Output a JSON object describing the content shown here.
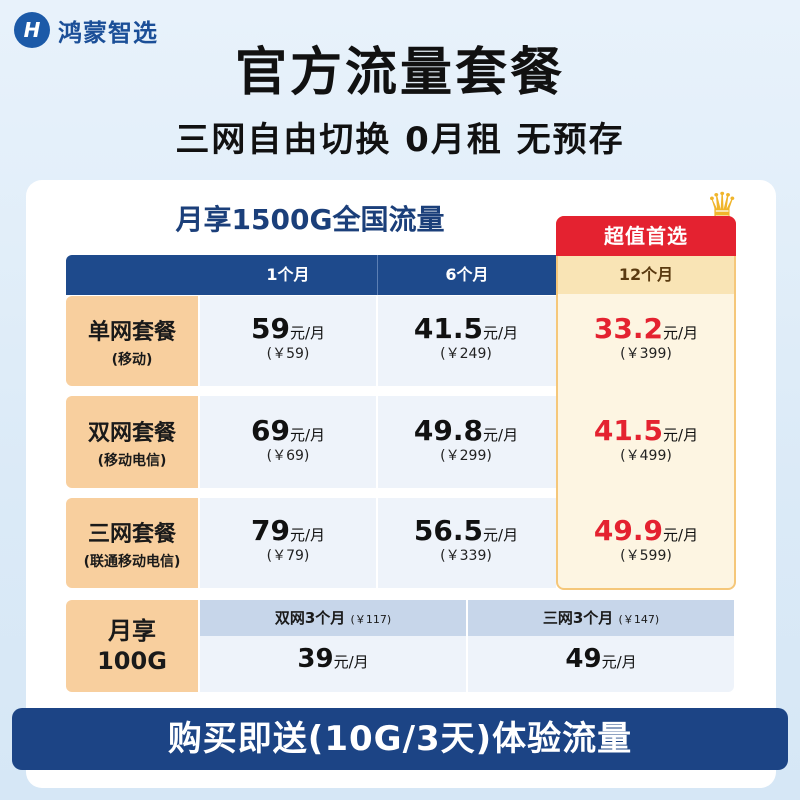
{
  "brand": {
    "name": "鸿蒙智选",
    "logo_glyph": "H"
  },
  "title": "官方流量套餐",
  "subtitle": "三网自由切换 0月租 无预存",
  "table_title": "月享1500G全国流量",
  "highlight_badge": "超值首选",
  "columns": [
    "1个月",
    "6个月",
    "12个月"
  ],
  "unit": "元/月",
  "rows": [
    {
      "name": "单网套餐",
      "sub": "(移动)",
      "prices": [
        {
          "value": "59",
          "total": "(￥59)"
        },
        {
          "value": "41.5",
          "total": "(￥249)"
        },
        {
          "value": "33.2",
          "total": "(￥399)"
        }
      ]
    },
    {
      "name": "双网套餐",
      "sub": "(移动电信)",
      "prices": [
        {
          "value": "69",
          "total": "(￥69)"
        },
        {
          "value": "49.8",
          "total": "(￥299)"
        },
        {
          "value": "41.5",
          "total": "(￥499)"
        }
      ]
    },
    {
      "name": "三网套餐",
      "sub": "(联通移动电信)",
      "prices": [
        {
          "value": "79",
          "total": "(￥79)"
        },
        {
          "value": "56.5",
          "total": "(￥339)"
        },
        {
          "value": "49.9",
          "total": "(￥599)"
        }
      ]
    }
  ],
  "plan_100g": {
    "label_line1": "月享",
    "label_line2": "100G",
    "options": [
      {
        "name": "双网3个月",
        "total": "(￥117)",
        "value": "39"
      },
      {
        "name": "三网3个月",
        "total": "(￥147)",
        "value": "49"
      }
    ]
  },
  "banner": "购买即送(10G/3天)体验流量",
  "colors": {
    "navy": "#1e4a8c",
    "red": "#e42230",
    "peach": "#f8cf9e",
    "gold": "#f5c77a"
  }
}
